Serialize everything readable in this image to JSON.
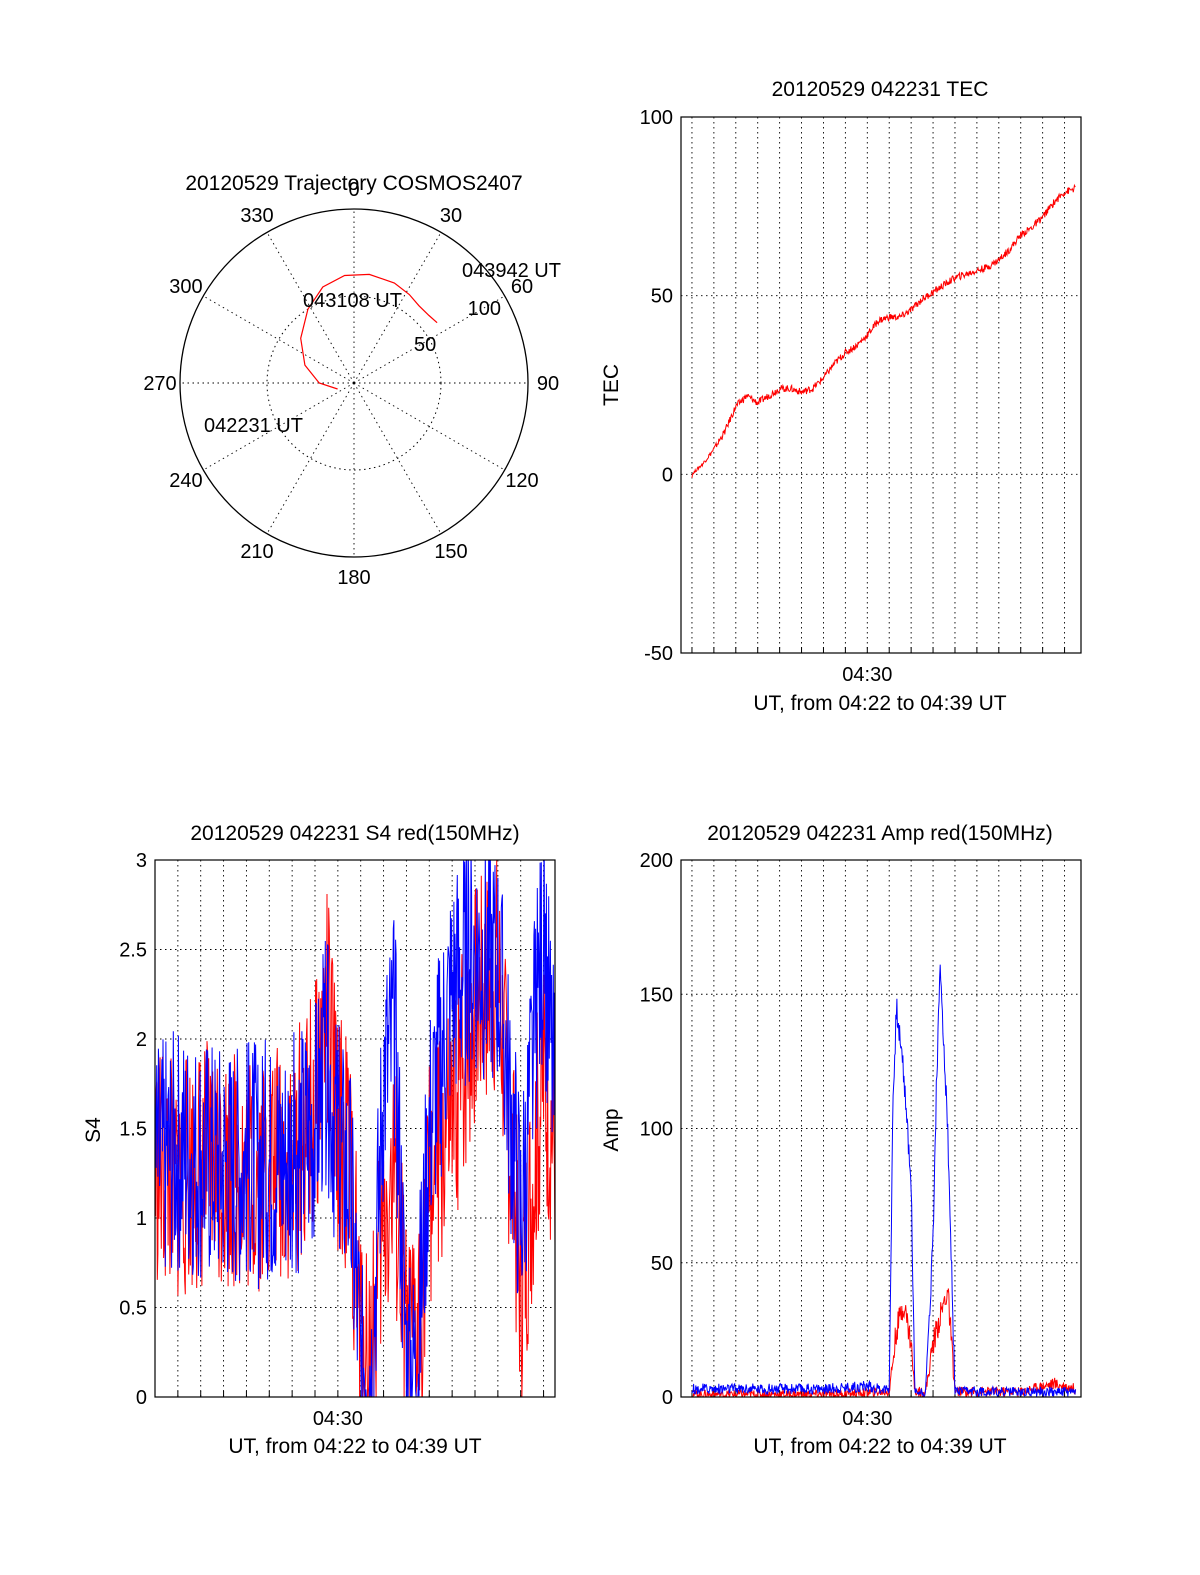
{
  "colors": {
    "red": "#ff0000",
    "blue": "#0000ff",
    "black": "#000000",
    "background": "#ffffff"
  },
  "chart_data": [
    {
      "type": "scatter",
      "title": "20120529 Trajectory COSMOS2407",
      "projection": "polar",
      "azimuth_labels": [
        "0",
        "30",
        "60",
        "90",
        "120",
        "150",
        "180",
        "210",
        "240",
        "270",
        "300",
        "330"
      ],
      "elevation_labels": [
        "50",
        "100"
      ],
      "rlim": [
        0,
        100
      ],
      "grid": true,
      "annotations": [
        "043942 UT",
        "043108 UT",
        "042231 UT"
      ],
      "series": [
        {
          "color": "#ff0000",
          "points": [
            [
              250,
              10
            ],
            [
              270,
              20
            ],
            [
              290,
              30
            ],
            [
              310,
              40
            ],
            [
              328,
              50
            ],
            [
              342,
              58
            ],
            [
              355,
              62
            ],
            [
              8,
              63
            ],
            [
              22,
              62
            ],
            [
              32,
              60
            ],
            [
              40,
              58
            ],
            [
              48,
              58
            ],
            [
              54,
              59
            ]
          ]
        }
      ]
    },
    {
      "type": "line",
      "title": "20120529 042231 TEC",
      "xlabel": "UT, from 04:22 to 04:39 UT",
      "ylabel": "TEC",
      "x_ticklabels": [
        "04:30"
      ],
      "y_ticks": [
        "-50",
        "0",
        "50",
        "100"
      ],
      "xlim": [
        "04:21:30",
        "04:39:45"
      ],
      "ylim": [
        -50,
        100
      ],
      "grid": true,
      "series": [
        {
          "color": "#ff0000",
          "x": [
            "04:22:00",
            "04:22:30",
            "04:23:00",
            "04:23:30",
            "04:24:00",
            "04:24:30",
            "04:25:00",
            "04:25:30",
            "04:26:00",
            "04:26:30",
            "04:27:00",
            "04:27:30",
            "04:28:00",
            "04:28:30",
            "04:29:00",
            "04:29:30",
            "04:30:00",
            "04:30:30",
            "04:31:00",
            "04:31:30",
            "04:32:00",
            "04:32:30",
            "04:33:00",
            "04:33:30",
            "04:34:00",
            "04:34:30",
            "04:35:00",
            "04:35:30",
            "04:36:00",
            "04:36:30",
            "04:37:00",
            "04:37:30",
            "04:38:00",
            "04:38:30",
            "04:39:00",
            "04:39:30"
          ],
          "values": [
            0,
            3,
            7,
            12,
            19,
            22,
            20,
            22,
            24,
            24,
            23,
            24,
            27,
            31,
            34,
            36,
            39,
            43,
            44,
            44,
            46,
            49,
            51,
            53,
            55,
            56,
            57,
            58,
            60,
            63,
            67,
            69,
            72,
            76,
            79,
            80
          ]
        }
      ]
    },
    {
      "type": "line",
      "title": "20120529 042231 S4 red(150MHz)",
      "xlabel": "UT, from 04:22 to 04:39 UT",
      "ylabel": "S4",
      "x_ticklabels": [
        "04:30"
      ],
      "y_ticks": [
        "0",
        "0.5",
        "1",
        "1.5",
        "2",
        "2.5",
        "3"
      ],
      "xlim": [
        "04:22:00",
        "04:39:30"
      ],
      "ylim": [
        0,
        3
      ],
      "grid": true,
      "series": [
        {
          "color": "#ff0000",
          "x": [
            "04:22:00",
            "04:23:00",
            "04:24:00",
            "04:25:00",
            "04:26:00",
            "04:27:00",
            "04:28:00",
            "04:29:00",
            "04:29:30",
            "04:30:00",
            "04:30:30",
            "04:31:00",
            "04:31:30",
            "04:32:00",
            "04:32:30",
            "04:33:00",
            "04:33:30",
            "04:34:00",
            "04:35:00",
            "04:36:00",
            "04:37:00",
            "04:37:30",
            "04:38:00",
            "04:39:00",
            "04:39:30"
          ],
          "values": [
            1.3,
            1.2,
            1.3,
            1.3,
            1.25,
            1.3,
            1.3,
            1.6,
            2.2,
            1.5,
            1.3,
            0.3,
            0.25,
            1.0,
            1.2,
            0.25,
            0.3,
            1.2,
            1.5,
            2.2,
            2.4,
            1.5,
            0.6,
            1.8,
            1.4
          ]
        },
        {
          "color": "#0000ff",
          "x": [
            "04:22:00",
            "04:23:00",
            "04:24:00",
            "04:25:00",
            "04:26:00",
            "04:27:00",
            "04:28:00",
            "04:29:00",
            "04:29:30",
            "04:30:00",
            "04:30:30",
            "04:31:00",
            "04:31:30",
            "04:32:00",
            "04:32:30",
            "04:33:00",
            "04:33:30",
            "04:34:00",
            "04:35:00",
            "04:36:00",
            "04:37:00",
            "04:37:30",
            "04:38:00",
            "04:39:00",
            "04:39:30"
          ],
          "values": [
            1.3,
            1.4,
            1.35,
            1.3,
            1.3,
            1.3,
            1.35,
            1.5,
            1.9,
            1.4,
            1.2,
            0.22,
            0.2,
            1.8,
            2.0,
            0.2,
            0.22,
            1.5,
            2.3,
            2.5,
            2.4,
            1.7,
            1.0,
            2.6,
            1.6
          ]
        }
      ]
    },
    {
      "type": "line",
      "title": "20120529 042231 Amp red(150MHz)",
      "xlabel": "UT, from 04:22 to 04:39 UT",
      "ylabel": "Amp",
      "x_ticklabels": [
        "04:30"
      ],
      "y_ticks": [
        "0",
        "50",
        "100",
        "150",
        "200"
      ],
      "xlim": [
        "04:21:30",
        "04:39:45"
      ],
      "ylim": [
        0,
        200
      ],
      "grid": true,
      "series": [
        {
          "color": "#ff0000",
          "x": [
            "04:22:00",
            "04:25:00",
            "04:28:00",
            "04:31:00",
            "04:31:20",
            "04:31:40",
            "04:32:00",
            "04:32:10",
            "04:32:40",
            "04:33:00",
            "04:33:20",
            "04:33:40",
            "04:34:00",
            "04:37:00",
            "04:37:30",
            "04:38:30",
            "04:39:00",
            "04:39:30"
          ],
          "values": [
            1,
            1,
            1,
            2,
            25,
            35,
            20,
            2,
            2,
            20,
            30,
            40,
            2,
            2,
            3,
            5,
            4,
            3
          ]
        },
        {
          "color": "#0000ff",
          "x": [
            "04:22:00",
            "04:25:00",
            "04:28:00",
            "04:30:00",
            "04:30:30",
            "04:31:00",
            "04:31:10",
            "04:31:20",
            "04:31:40",
            "04:31:50",
            "04:32:00",
            "04:32:10",
            "04:32:40",
            "04:33:00",
            "04:33:10",
            "04:33:20",
            "04:33:30",
            "04:33:40",
            "04:34:00",
            "04:34:30",
            "04:37:00",
            "04:39:30"
          ],
          "values": [
            3,
            3,
            3,
            4,
            3,
            3,
            110,
            145,
            120,
            100,
            80,
            2,
            2,
            60,
            120,
            160,
            130,
            100,
            2,
            2,
            2,
            2
          ]
        }
      ]
    }
  ]
}
